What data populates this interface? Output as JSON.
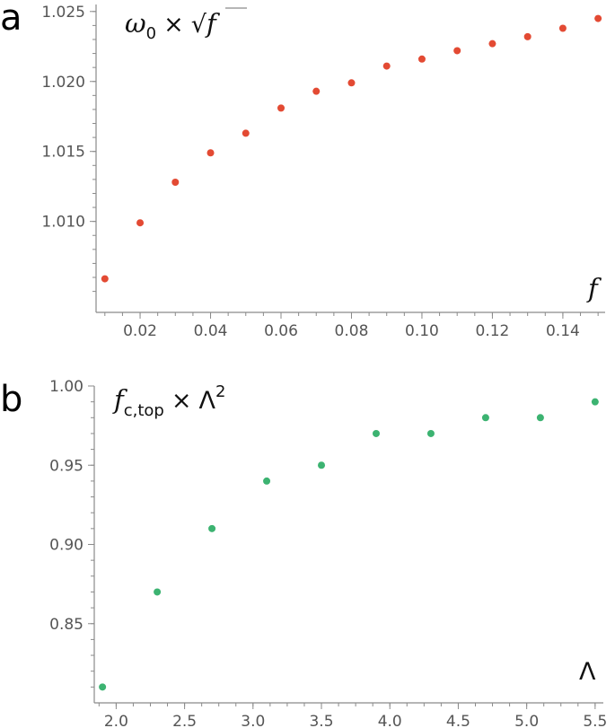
{
  "chart_data": [
    {
      "panel": "a",
      "type": "scatter",
      "ylabel_parts": {
        "omega": "ω",
        "omega_sub": "0",
        "times": "×",
        "sqrt": "√",
        "var": "f"
      },
      "xlabel": "f",
      "color": "#e34a33",
      "xlim": [
        0.0075,
        0.152
      ],
      "ylim": [
        1.0035,
        1.0255
      ],
      "x_ticks": [
        "0.02",
        "0.04",
        "0.06",
        "0.08",
        "0.10",
        "0.12",
        "0.14"
      ],
      "y_ticks": [
        "1.010",
        "1.015",
        "1.020",
        "1.025"
      ],
      "points": [
        [
          0.01,
          1.0059
        ],
        [
          0.02,
          1.0099
        ],
        [
          0.03,
          1.0128
        ],
        [
          0.04,
          1.0149
        ],
        [
          0.05,
          1.0163
        ],
        [
          0.06,
          1.0181
        ],
        [
          0.07,
          1.0193
        ],
        [
          0.08,
          1.0199
        ],
        [
          0.09,
          1.0211
        ],
        [
          0.1,
          1.0216
        ],
        [
          0.11,
          1.0222
        ],
        [
          0.12,
          1.0227
        ],
        [
          0.13,
          1.0232
        ],
        [
          0.14,
          1.0238
        ],
        [
          0.15,
          1.0245
        ]
      ]
    },
    {
      "panel": "b",
      "type": "scatter",
      "ylabel_parts": {
        "f": "f",
        "f_sub": "c,top",
        "times": "×",
        "lambda": "Λ",
        "exp": "2"
      },
      "xlabel": "Λ",
      "color": "#3cb371",
      "xlim": [
        1.84,
        5.56
      ],
      "ylim": [
        0.8,
        1.0
      ],
      "x_ticks": [
        "2.0",
        "2.5",
        "3.0",
        "3.5",
        "4.0",
        "4.5",
        "5.0",
        "5.5"
      ],
      "y_ticks": [
        "0.85",
        "0.90",
        "0.95",
        "1.00"
      ],
      "points": [
        [
          1.9,
          0.81
        ],
        [
          2.3,
          0.87
        ],
        [
          2.7,
          0.91
        ],
        [
          3.1,
          0.94
        ],
        [
          3.5,
          0.95
        ],
        [
          3.9,
          0.97
        ],
        [
          4.3,
          0.97
        ],
        [
          4.7,
          0.98
        ],
        [
          5.1,
          0.98
        ],
        [
          5.5,
          0.99
        ]
      ]
    }
  ]
}
